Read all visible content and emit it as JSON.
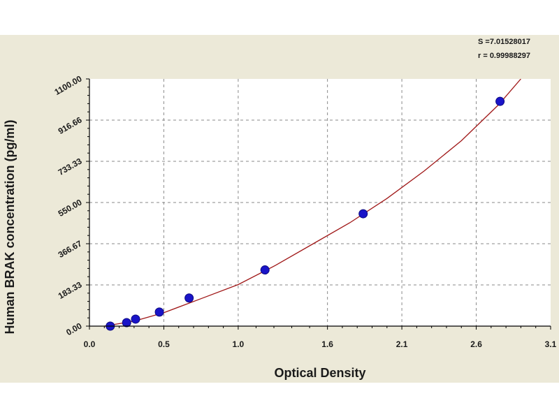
{
  "chart_data": {
    "type": "scatter",
    "xlabel": "Optical Density",
    "ylabel": "Human BRAK concentration (pg/ml)",
    "xlim": [
      0.0,
      3.1
    ],
    "ylim": [
      0.0,
      1100.0
    ],
    "xticks": [
      0.0,
      0.5,
      1.0,
      1.6,
      2.1,
      2.6,
      3.1
    ],
    "xtick_labels": [
      "0.0",
      "0.5",
      "1.0",
      "1.6",
      "2.1",
      "2.6",
      "3.1"
    ],
    "yticks": [
      0.0,
      183.33,
      366.67,
      550.0,
      733.33,
      916.66,
      1100.0
    ],
    "ytick_labels": [
      "0.00",
      "183.33",
      "366.67",
      "550.00",
      "733.33",
      "916.66",
      "1100.00"
    ],
    "grid": true,
    "series": [
      {
        "x": [
          0.14,
          0.25,
          0.31,
          0.47,
          0.67,
          1.18,
          1.84,
          2.76
        ],
        "y": [
          0,
          15.6,
          31.25,
          62.5,
          125,
          250,
          500,
          1000
        ]
      }
    ],
    "fit_curve": {
      "x": [
        0.1,
        0.3,
        0.5,
        0.75,
        1.0,
        1.25,
        1.5,
        1.75,
        2.0,
        2.25,
        2.5,
        2.75,
        2.9
      ],
      "y": [
        0,
        22,
        60,
        122,
        185,
        270,
        365,
        460,
        568,
        690,
        825,
        985,
        1100
      ]
    },
    "stats": {
      "s": "S =7.01528017",
      "r": "r = 0.99988297"
    },
    "colors": {
      "panel": "#ece9d8",
      "plot_bg": "#ffffff",
      "grid": "#8a8a8a",
      "curve": "#a01818",
      "point": "#1a14c8"
    }
  }
}
